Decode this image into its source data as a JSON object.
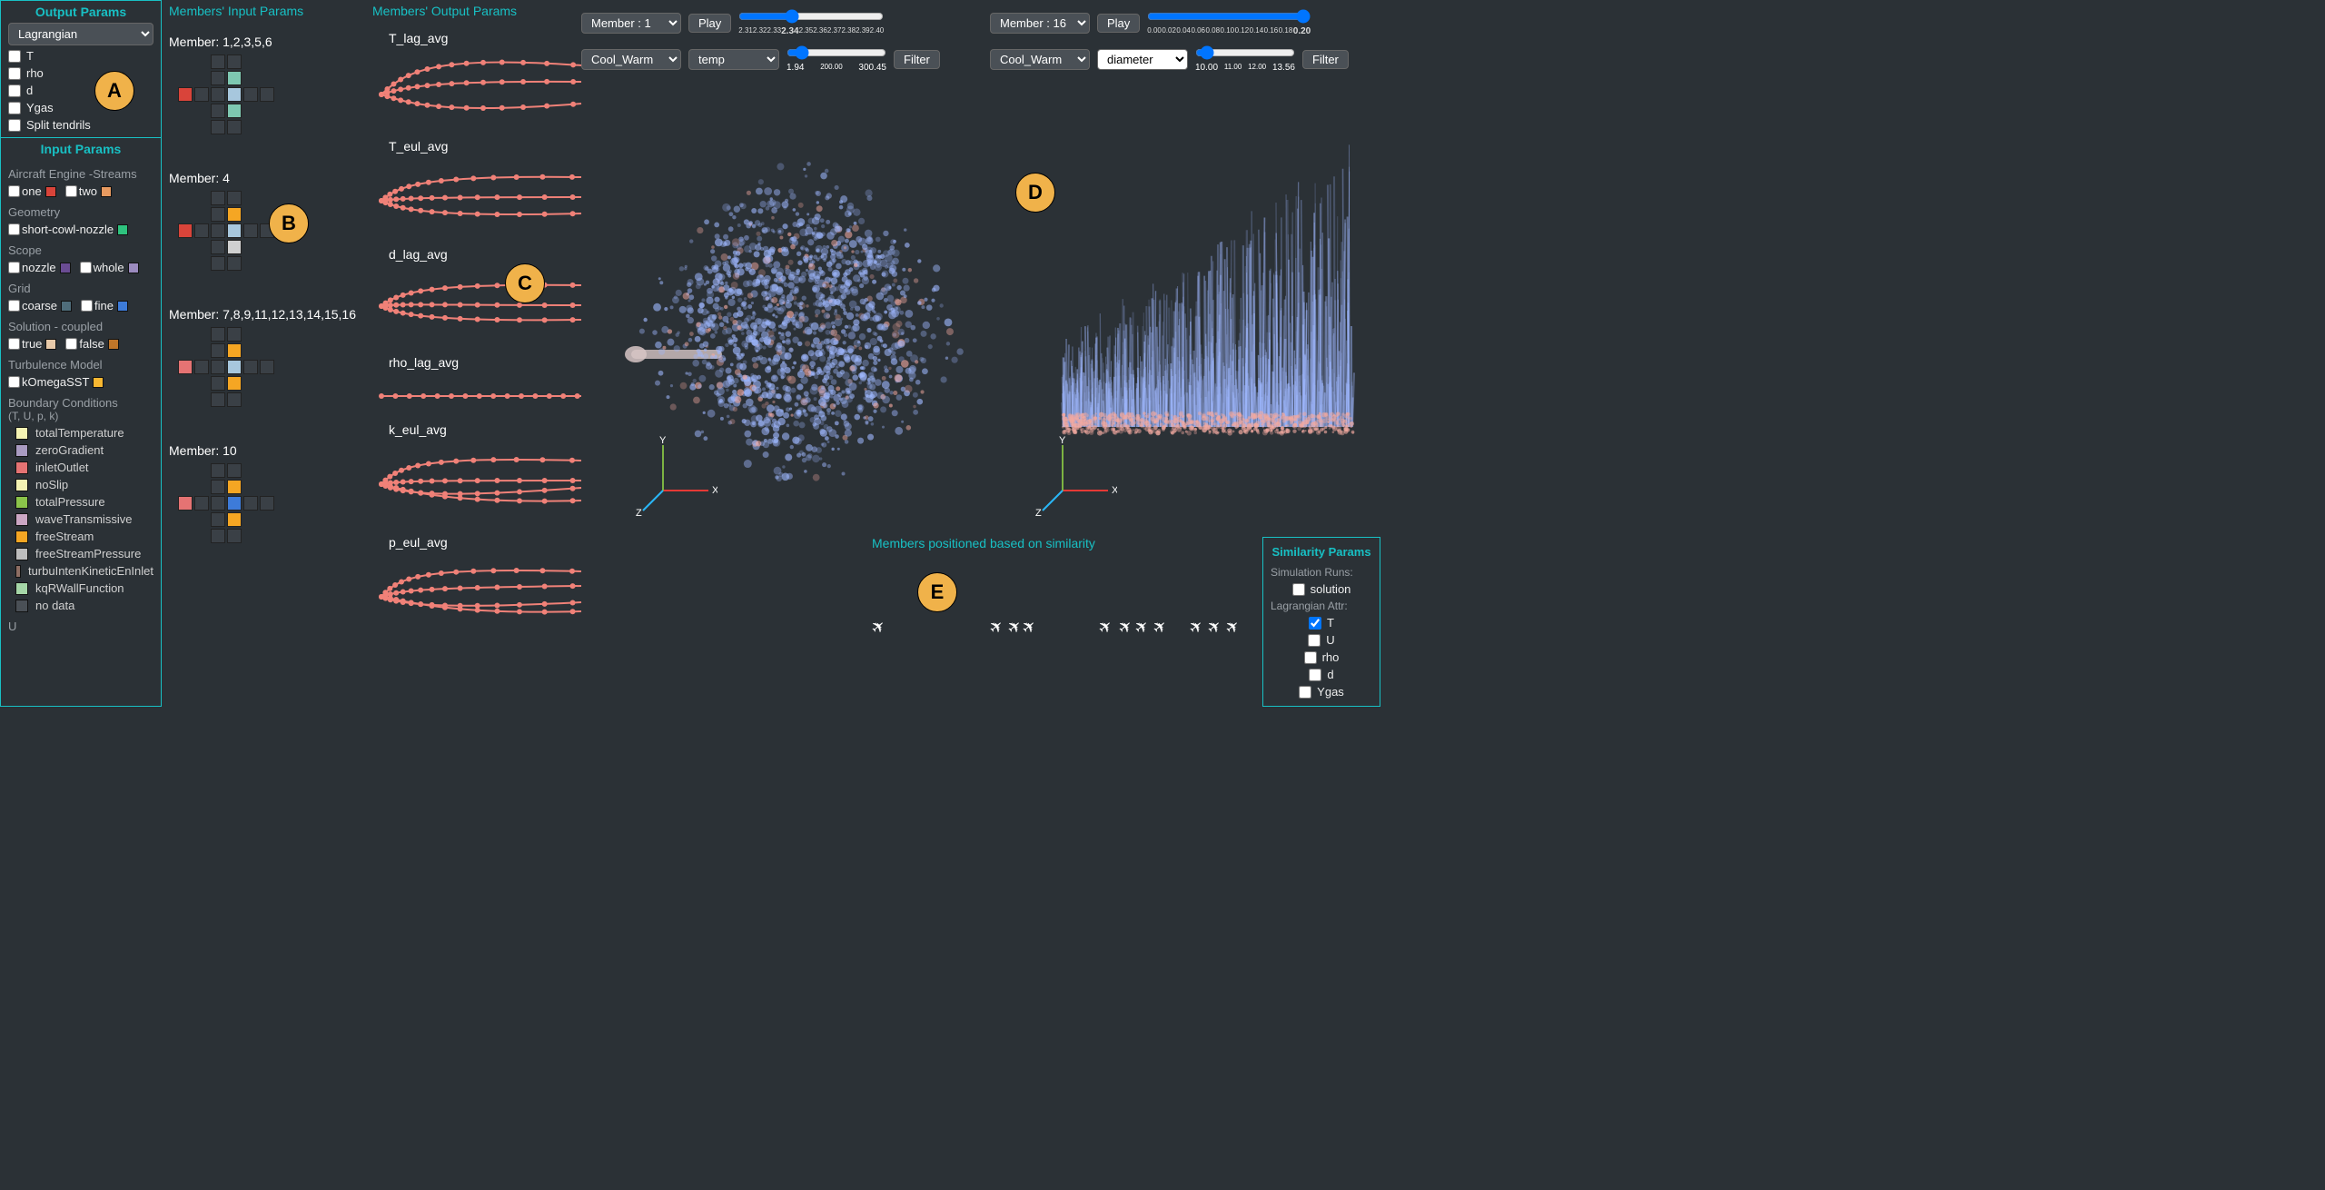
{
  "colors": {
    "bg": "#2b3136",
    "accent": "#18c0c4",
    "tendril": "#f08178",
    "anno_bg": "#f0b24a",
    "x_axis": "#e53935",
    "y_axis": "#7cb342",
    "z_axis": "#29b6f6",
    "particles_blue": "#9fb8ff",
    "particles_red": "#f2a9a0"
  },
  "sidebar": {
    "output_title": "Output Params",
    "output_select": "Lagrangian",
    "output_checks": [
      "T",
      "rho",
      "d",
      "Ygas",
      "Split tendrils"
    ],
    "input_title": "Input Params",
    "sections": [
      {
        "label": "Aircraft Engine -Streams",
        "items": [
          {
            "name": "one",
            "color": "#d9443a",
            "checked": false,
            "type": "check"
          },
          {
            "name": "two",
            "color": "#e89a60",
            "checked": false,
            "type": "check"
          }
        ]
      },
      {
        "label": "Geometry",
        "items": [
          {
            "name": "short-cowl-nozzle",
            "color": "#2ec27e",
            "checked": false,
            "type": "check"
          }
        ]
      },
      {
        "label": "Scope",
        "items": [
          {
            "name": "nozzle",
            "color": "#6a4c93",
            "checked": false,
            "type": "check"
          },
          {
            "name": "whole",
            "color": "#9b8bbf",
            "checked": false,
            "type": "check"
          }
        ]
      },
      {
        "label": "Grid",
        "items": [
          {
            "name": "coarse",
            "color": "#4f6d7a",
            "checked": false,
            "type": "check"
          },
          {
            "name": "fine",
            "color": "#3d7bd9",
            "checked": false,
            "type": "check"
          }
        ]
      },
      {
        "label": "Solution - coupled",
        "items": [
          {
            "name": "true",
            "color": "#e7c9a9",
            "checked": false,
            "type": "check"
          },
          {
            "name": "false",
            "color": "#c07629",
            "checked": false,
            "type": "check"
          }
        ]
      },
      {
        "label": "Turbulence Model",
        "items": [
          {
            "name": "kOmegaSST",
            "color": "#f7b731",
            "checked": false,
            "type": "check"
          }
        ]
      }
    ],
    "bc_title": "Boundary Conditions",
    "bc_sub": "(T, U, p, k)",
    "bc_items": [
      {
        "name": "totalTemperature",
        "color": "#f5f3b3"
      },
      {
        "name": "zeroGradient",
        "color": "#a99bc1"
      },
      {
        "name": "inletOutlet",
        "color": "#e57373"
      },
      {
        "name": "noSlip",
        "color": "#f5f3b3"
      },
      {
        "name": "totalPressure",
        "color": "#8bc34a"
      },
      {
        "name": "waveTransmissive",
        "color": "#cba6c3"
      },
      {
        "name": "freeStream",
        "color": "#f5a623"
      },
      {
        "name": "freeStreamPressure",
        "color": "#bdbdbd"
      },
      {
        "name": "turbuIntenKineticEnInlet",
        "color": "#8d6e63"
      },
      {
        "name": "kqRWallFunction",
        "color": "#a5d6a7"
      },
      {
        "name": "no data",
        "color": "#4a5056"
      }
    ],
    "trailing": "U"
  },
  "members_inputs": {
    "title": "Members' Input Params",
    "groups": [
      {
        "label": "Member: 1,2,3,5,6",
        "cells": [
          {
            "r": 0,
            "c": 2,
            "color": "#3a4046"
          },
          {
            "r": 0,
            "c": 3,
            "color": "#3a4046"
          },
          {
            "r": 1,
            "c": 2,
            "color": "#3a4046"
          },
          {
            "r": 1,
            "c": 3,
            "color": "#7ec8b1"
          },
          {
            "r": 2,
            "c": 0,
            "color": "#d9443a"
          },
          {
            "r": 2,
            "c": 1,
            "color": "#3a4046"
          },
          {
            "r": 2,
            "c": 2,
            "color": "#3a4046"
          },
          {
            "r": 2,
            "c": 3,
            "color": "#a7c7dd"
          },
          {
            "r": 2,
            "c": 4,
            "color": "#3a4046"
          },
          {
            "r": 2,
            "c": 5,
            "color": "#3a4046"
          },
          {
            "r": 3,
            "c": 2,
            "color": "#3a4046"
          },
          {
            "r": 3,
            "c": 3,
            "color": "#7ec8b1"
          },
          {
            "r": 4,
            "c": 2,
            "color": "#3a4046"
          },
          {
            "r": 4,
            "c": 3,
            "color": "#3a4046"
          }
        ]
      },
      {
        "label": "Member: 4",
        "cells": [
          {
            "r": 0,
            "c": 2,
            "color": "#3a4046"
          },
          {
            "r": 0,
            "c": 3,
            "color": "#3a4046"
          },
          {
            "r": 1,
            "c": 2,
            "color": "#3a4046"
          },
          {
            "r": 1,
            "c": 3,
            "color": "#f5a623"
          },
          {
            "r": 2,
            "c": 0,
            "color": "#d9443a"
          },
          {
            "r": 2,
            "c": 1,
            "color": "#3a4046"
          },
          {
            "r": 2,
            "c": 2,
            "color": "#3a4046"
          },
          {
            "r": 2,
            "c": 3,
            "color": "#a7c7dd"
          },
          {
            "r": 2,
            "c": 4,
            "color": "#3a4046"
          },
          {
            "r": 2,
            "c": 5,
            "color": "#3a4046"
          },
          {
            "r": 3,
            "c": 2,
            "color": "#3a4046"
          },
          {
            "r": 3,
            "c": 3,
            "color": "#d0d0d0"
          },
          {
            "r": 4,
            "c": 2,
            "color": "#3a4046"
          },
          {
            "r": 4,
            "c": 3,
            "color": "#3a4046"
          }
        ]
      },
      {
        "label": "Member: 7,8,9,11,12,13,14,15,16",
        "cells": [
          {
            "r": 0,
            "c": 2,
            "color": "#3a4046"
          },
          {
            "r": 0,
            "c": 3,
            "color": "#3a4046"
          },
          {
            "r": 1,
            "c": 2,
            "color": "#3a4046"
          },
          {
            "r": 1,
            "c": 3,
            "color": "#f5a623"
          },
          {
            "r": 2,
            "c": 0,
            "color": "#e57373"
          },
          {
            "r": 2,
            "c": 1,
            "color": "#3a4046"
          },
          {
            "r": 2,
            "c": 2,
            "color": "#3a4046"
          },
          {
            "r": 2,
            "c": 3,
            "color": "#a7c7dd"
          },
          {
            "r": 2,
            "c": 4,
            "color": "#3a4046"
          },
          {
            "r": 2,
            "c": 5,
            "color": "#3a4046"
          },
          {
            "r": 3,
            "c": 2,
            "color": "#3a4046"
          },
          {
            "r": 3,
            "c": 3,
            "color": "#f5a623"
          },
          {
            "r": 4,
            "c": 2,
            "color": "#3a4046"
          },
          {
            "r": 4,
            "c": 3,
            "color": "#3a4046"
          }
        ]
      },
      {
        "label": "Member: 10",
        "cells": [
          {
            "r": 0,
            "c": 2,
            "color": "#3a4046"
          },
          {
            "r": 0,
            "c": 3,
            "color": "#3a4046"
          },
          {
            "r": 1,
            "c": 2,
            "color": "#3a4046"
          },
          {
            "r": 1,
            "c": 3,
            "color": "#f5a623"
          },
          {
            "r": 2,
            "c": 0,
            "color": "#e57373"
          },
          {
            "r": 2,
            "c": 1,
            "color": "#3a4046"
          },
          {
            "r": 2,
            "c": 2,
            "color": "#3a4046"
          },
          {
            "r": 2,
            "c": 3,
            "color": "#3d7bd9"
          },
          {
            "r": 2,
            "c": 4,
            "color": "#3a4046"
          },
          {
            "r": 2,
            "c": 5,
            "color": "#3a4046"
          },
          {
            "r": 3,
            "c": 2,
            "color": "#3a4046"
          },
          {
            "r": 3,
            "c": 3,
            "color": "#f5a623"
          },
          {
            "r": 4,
            "c": 2,
            "color": "#3a4046"
          },
          {
            "r": 4,
            "c": 3,
            "color": "#3a4046"
          }
        ]
      }
    ]
  },
  "members_outputs": {
    "title": "Members' Output Params",
    "params": [
      "T_lag_avg",
      "T_eul_avg",
      "d_lag_avg",
      "rho_lag_avg",
      "k_eul_avg",
      "p_eul_avg"
    ]
  },
  "viz_left": {
    "member_sel": "Member : 1",
    "play": "Play",
    "ticks": [
      "2.31",
      "2.32",
      "2.33",
      "2.34",
      "2.35",
      "2.36",
      "2.37",
      "2.38",
      "2.39",
      "2.40"
    ],
    "tick_bold": "2.34",
    "colormap": "Cool_Warm",
    "attr": "temp",
    "range_lo": "1.94",
    "range_mid": "200.00",
    "range_hi": "300.45",
    "filter": "Filter"
  },
  "viz_right": {
    "member_sel": "Member : 16",
    "play": "Play",
    "ticks": [
      "0.00",
      "0.02",
      "0.04",
      "0.06",
      "0.08",
      "0.10",
      "0.12",
      "0.14",
      "0.16",
      "0.18",
      "0.20"
    ],
    "tick_bold": "0.20",
    "colormap": "Cool_Warm",
    "attr": "diameter",
    "range_lo": "10.00",
    "range_mid1": "11.00",
    "range_mid2": "12.00",
    "range_hi": "13.56",
    "filter": "Filter"
  },
  "axes": {
    "x": "X",
    "y": "Y",
    "z": "Z"
  },
  "similarity": {
    "title": "Members positioned based on similarity",
    "panel_title": "Similarity Params",
    "runs_label": "Simulation Runs:",
    "runs_items": [
      {
        "name": "solution",
        "checked": false
      }
    ],
    "lag_label": "Lagrangian Attr:",
    "lag_items": [
      {
        "name": "T",
        "checked": true
      },
      {
        "name": "U",
        "checked": false
      },
      {
        "name": "rho",
        "checked": false
      },
      {
        "name": "d",
        "checked": false
      },
      {
        "name": "Ygas",
        "checked": false
      }
    ]
  },
  "annotations": {
    "A": "A",
    "B": "B",
    "C": "C",
    "D": "D",
    "E": "E"
  }
}
